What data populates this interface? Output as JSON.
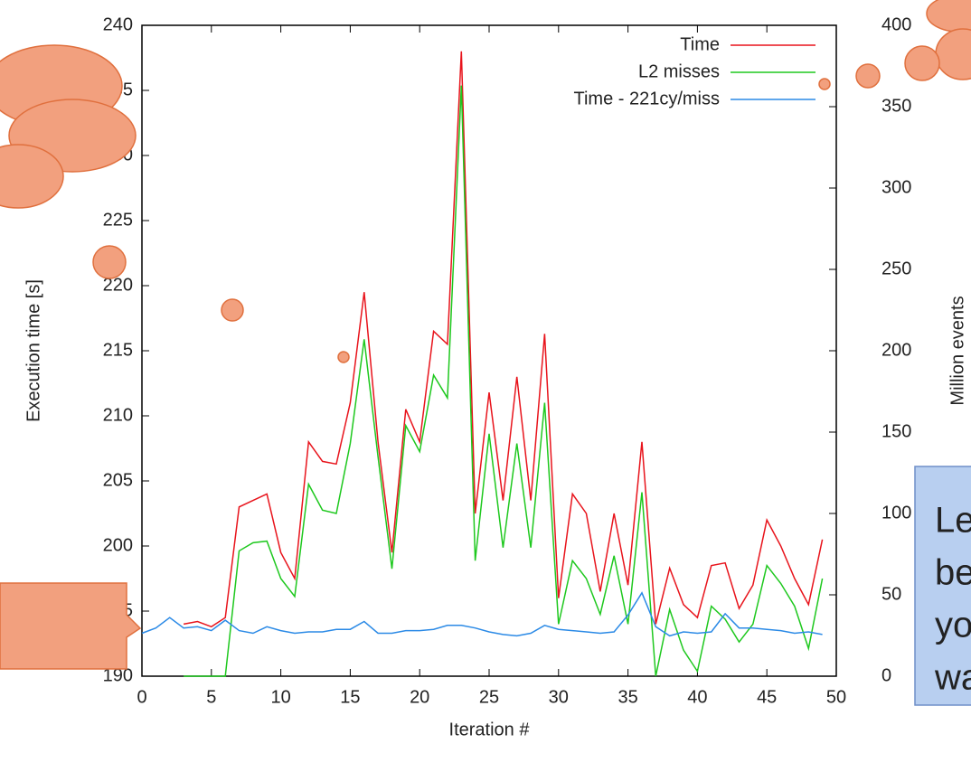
{
  "chart_data": {
    "type": "line",
    "x": [
      0,
      1,
      2,
      3,
      4,
      5,
      6,
      7,
      8,
      9,
      10,
      11,
      12,
      13,
      14,
      15,
      16,
      17,
      18,
      19,
      20,
      21,
      22,
      23,
      24,
      25,
      26,
      27,
      28,
      29,
      30,
      31,
      32,
      33,
      34,
      35,
      36,
      37,
      38,
      39,
      40,
      41,
      42,
      43,
      44,
      45,
      46,
      47,
      48,
      49
    ],
    "series": [
      {
        "name": "Time",
        "color": "#e8141c",
        "axis": "y",
        "values": [
          null,
          null,
          null,
          194,
          194.2,
          193.8,
          194.5,
          203,
          203.5,
          204,
          199.5,
          197.5,
          208,
          206.5,
          206.3,
          211,
          219.5,
          208,
          199.5,
          210.5,
          208,
          216.5,
          215.5,
          238,
          202.5,
          211.8,
          203.5,
          213,
          203.5,
          216.3,
          196,
          204,
          202.5,
          196.5,
          202.5,
          197,
          208,
          194,
          198.3,
          195.5,
          194.5,
          198.5,
          198.7,
          195.2,
          197,
          202,
          200,
          197.5,
          195.5,
          200.5
        ]
      },
      {
        "name": "L2 misses",
        "color": "#1ec81e",
        "axis": "y2",
        "values": [
          null,
          null,
          null,
          0,
          0,
          0,
          0,
          77,
          82,
          83,
          60,
          49,
          118,
          102,
          100,
          143,
          207,
          135,
          66,
          154,
          138,
          185,
          171,
          363,
          71,
          149,
          79,
          143,
          79,
          168,
          32,
          71,
          60,
          38,
          74,
          32,
          113,
          0,
          41,
          16,
          3,
          43,
          35,
          21,
          32,
          68,
          57,
          43,
          17,
          60
        ]
      },
      {
        "name": "Time - 221cy/miss",
        "color": "#2b8ae6",
        "axis": "y",
        "values": [
          193.3,
          193.7,
          194.5,
          193.7,
          193.8,
          193.5,
          194.3,
          193.5,
          193.3,
          193.8,
          193.5,
          193.3,
          193.4,
          193.4,
          193.6,
          193.6,
          194.2,
          193.3,
          193.3,
          193.5,
          193.5,
          193.6,
          193.9,
          193.9,
          193.7,
          193.4,
          193.2,
          193.1,
          193.3,
          193.9,
          193.6,
          193.5,
          193.4,
          193.3,
          193.4,
          194.7,
          196.4,
          193.8,
          193.1,
          193.4,
          193.3,
          193.4,
          194.8,
          193.7,
          193.7,
          193.6,
          193.5,
          193.3,
          193.4,
          193.2
        ]
      }
    ],
    "xlabel": "Iteration #",
    "ylabel": "Execution time [s]",
    "y2label": "Million events",
    "xlim": [
      0,
      50
    ],
    "xticks": [
      0,
      5,
      10,
      15,
      20,
      25,
      30,
      35,
      40,
      45,
      50
    ],
    "ylim": [
      190,
      240
    ],
    "yticks": [
      190,
      195,
      200,
      205,
      210,
      215,
      220,
      225,
      230,
      235,
      240
    ],
    "y2lim": [
      0,
      400
    ],
    "y2ticks": [
      0,
      50,
      100,
      150,
      200,
      250,
      300,
      350,
      400
    ],
    "legend": "top-right",
    "annotation_lines": [
      "Le",
      "be",
      "yo",
      "wa"
    ]
  }
}
